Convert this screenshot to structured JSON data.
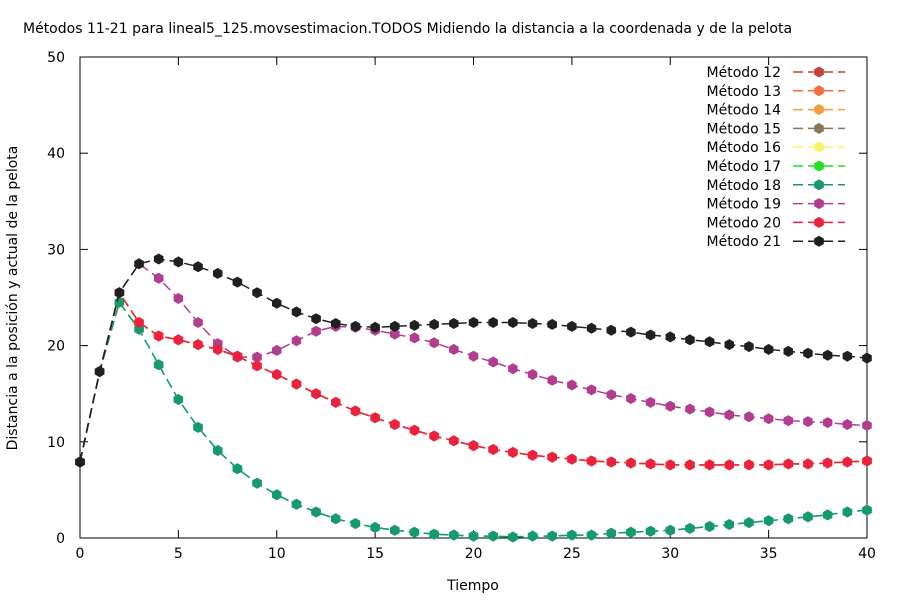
{
  "chart_data": {
    "type": "line",
    "title": "Métodos 11-21 para lineal5_125.movsestimacion.TODOS Midiendo la distancia a la coordenada y de la pelota",
    "xlabel": "Tiempo",
    "ylabel": "Distancia a la posición y actual de la pelota",
    "xlim": [
      0,
      40
    ],
    "ylim": [
      0,
      50
    ],
    "xticks": [
      "0",
      "5",
      "10",
      "15",
      "20",
      "25",
      "30",
      "35",
      "40"
    ],
    "yticks": [
      "0",
      "10",
      "20",
      "30",
      "40",
      "50"
    ],
    "grid": false,
    "legend_position": "top-right",
    "x": [
      0,
      1,
      2,
      3,
      4,
      5,
      6,
      7,
      8,
      9,
      10,
      11,
      12,
      13,
      14,
      15,
      16,
      17,
      18,
      19,
      20,
      21,
      22,
      23,
      24,
      25,
      26,
      27,
      28,
      29,
      30,
      31,
      32,
      33,
      34,
      35,
      36,
      37,
      38,
      39,
      40
    ],
    "series": [
      {
        "name": "Método 12",
        "color": "#c8403a",
        "dash": "10,5",
        "values": [
          7.9,
          17.3,
          25.5,
          22.4,
          21.0,
          20.6,
          20.1,
          19.6,
          18.9,
          17.9,
          17.0,
          16.0,
          15.0,
          14.1,
          13.2,
          12.5,
          11.8,
          11.2,
          10.6,
          10.1,
          9.6,
          9.2,
          8.9,
          8.6,
          8.4,
          8.2,
          8.0,
          7.9,
          7.8,
          7.7,
          7.6,
          7.6,
          7.6,
          7.6,
          7.6,
          7.6,
          7.7,
          7.7,
          7.8,
          7.9,
          8.0
        ]
      },
      {
        "name": "Método 13",
        "color": "#f46d3a",
        "dash": "10,5",
        "values": [
          7.9,
          17.3,
          25.5,
          22.4,
          21.0,
          20.6,
          20.1,
          19.6,
          18.9,
          17.9,
          17.0,
          16.0,
          15.0,
          14.1,
          13.2,
          12.5,
          11.8,
          11.2,
          10.6,
          10.1,
          9.6,
          9.2,
          8.9,
          8.6,
          8.4,
          8.2,
          8.0,
          7.9,
          7.8,
          7.7,
          7.6,
          7.6,
          7.6,
          7.6,
          7.6,
          7.6,
          7.7,
          7.7,
          7.8,
          7.9,
          8.0
        ]
      },
      {
        "name": "Método 14",
        "color": "#f79b3c",
        "dash": "10,5",
        "values": [
          7.9,
          17.3,
          25.5,
          22.4,
          21.0,
          20.6,
          20.1,
          19.6,
          18.9,
          17.9,
          17.0,
          16.0,
          15.0,
          14.1,
          13.2,
          12.5,
          11.8,
          11.2,
          10.6,
          10.1,
          9.6,
          9.2,
          8.9,
          8.6,
          8.4,
          8.2,
          8.0,
          7.9,
          7.8,
          7.7,
          7.6,
          7.6,
          7.6,
          7.6,
          7.6,
          7.6,
          7.7,
          7.7,
          7.8,
          7.9,
          8.0
        ]
      },
      {
        "name": "Método 15",
        "color": "#8a7556",
        "dash": "10,5",
        "values": [
          7.9,
          17.3,
          25.5,
          22.4,
          21.0,
          20.6,
          20.1,
          19.6,
          18.9,
          17.9,
          17.0,
          16.0,
          15.0,
          14.1,
          13.2,
          12.5,
          11.8,
          11.2,
          10.6,
          10.1,
          9.6,
          9.2,
          8.9,
          8.6,
          8.4,
          8.2,
          8.0,
          7.9,
          7.8,
          7.7,
          7.6,
          7.6,
          7.6,
          7.6,
          7.6,
          7.6,
          7.7,
          7.7,
          7.8,
          7.9,
          8.0
        ]
      },
      {
        "name": "Método 16",
        "color": "#f5f56a",
        "dash": "10,5",
        "values": [
          7.9,
          17.3,
          25.5,
          22.4,
          21.0,
          20.6,
          20.1,
          19.6,
          18.9,
          17.9,
          17.0,
          16.0,
          15.0,
          14.1,
          13.2,
          12.5,
          11.8,
          11.2,
          10.6,
          10.1,
          9.6,
          9.2,
          8.9,
          8.6,
          8.4,
          8.2,
          8.0,
          7.9,
          7.8,
          7.7,
          7.6,
          7.6,
          7.6,
          7.6,
          7.6,
          7.6,
          7.7,
          7.7,
          7.8,
          7.9,
          8.0
        ]
      },
      {
        "name": "Método 17",
        "color": "#22e022",
        "dash": "10,5",
        "values": [
          7.9,
          17.3,
          24.5,
          21.7,
          18.0,
          14.4,
          11.5,
          9.1,
          7.2,
          5.7,
          4.5,
          3.5,
          2.7,
          2.0,
          1.5,
          1.1,
          0.8,
          0.6,
          0.4,
          0.3,
          0.2,
          0.2,
          0.1,
          0.2,
          0.2,
          0.3,
          0.3,
          0.5,
          0.6,
          0.7,
          0.8,
          1.0,
          1.2,
          1.4,
          1.6,
          1.8,
          2.0,
          2.2,
          2.4,
          2.7,
          2.9
        ]
      },
      {
        "name": "Método 18",
        "color": "#17996e",
        "dash": "10,5",
        "values": [
          7.9,
          17.3,
          24.5,
          21.7,
          18.0,
          14.4,
          11.5,
          9.1,
          7.2,
          5.7,
          4.5,
          3.5,
          2.7,
          2.0,
          1.5,
          1.1,
          0.8,
          0.6,
          0.4,
          0.3,
          0.2,
          0.2,
          0.1,
          0.2,
          0.2,
          0.3,
          0.3,
          0.5,
          0.6,
          0.7,
          0.8,
          1.0,
          1.2,
          1.4,
          1.6,
          1.8,
          2.0,
          2.2,
          2.4,
          2.7,
          2.9
        ]
      },
      {
        "name": "Método 19",
        "color": "#b23c8e",
        "dash": "10,5",
        "values": [
          7.9,
          17.3,
          25.5,
          28.5,
          27.0,
          24.9,
          22.4,
          20.2,
          18.8,
          18.8,
          19.5,
          20.5,
          21.5,
          22.0,
          21.9,
          21.6,
          21.2,
          20.8,
          20.3,
          19.6,
          18.9,
          18.3,
          17.6,
          17.0,
          16.4,
          15.9,
          15.4,
          14.9,
          14.5,
          14.1,
          13.7,
          13.4,
          13.1,
          12.8,
          12.6,
          12.4,
          12.2,
          12.1,
          12.0,
          11.8,
          11.7
        ]
      },
      {
        "name": "Método 20",
        "color": "#ed2040",
        "dash": "10,5",
        "values": [
          7.9,
          17.3,
          25.5,
          22.4,
          21.0,
          20.6,
          20.1,
          19.6,
          18.9,
          17.9,
          17.0,
          16.0,
          15.0,
          14.1,
          13.2,
          12.5,
          11.8,
          11.2,
          10.6,
          10.1,
          9.6,
          9.2,
          8.9,
          8.6,
          8.4,
          8.2,
          8.0,
          7.9,
          7.8,
          7.7,
          7.6,
          7.6,
          7.6,
          7.6,
          7.6,
          7.6,
          7.7,
          7.7,
          7.8,
          7.9,
          8.0
        ]
      },
      {
        "name": "Método 21",
        "color": "#202020",
        "dash": "10,5",
        "values": [
          7.9,
          17.3,
          25.5,
          28.5,
          29.0,
          28.7,
          28.2,
          27.5,
          26.6,
          25.5,
          24.4,
          23.5,
          22.8,
          22.3,
          22.0,
          21.9,
          22.0,
          22.1,
          22.2,
          22.3,
          22.4,
          22.4,
          22.4,
          22.3,
          22.2,
          22.0,
          21.8,
          21.6,
          21.4,
          21.1,
          20.9,
          20.6,
          20.4,
          20.1,
          19.9,
          19.6,
          19.4,
          19.2,
          19.0,
          18.9,
          18.7
        ]
      }
    ]
  }
}
